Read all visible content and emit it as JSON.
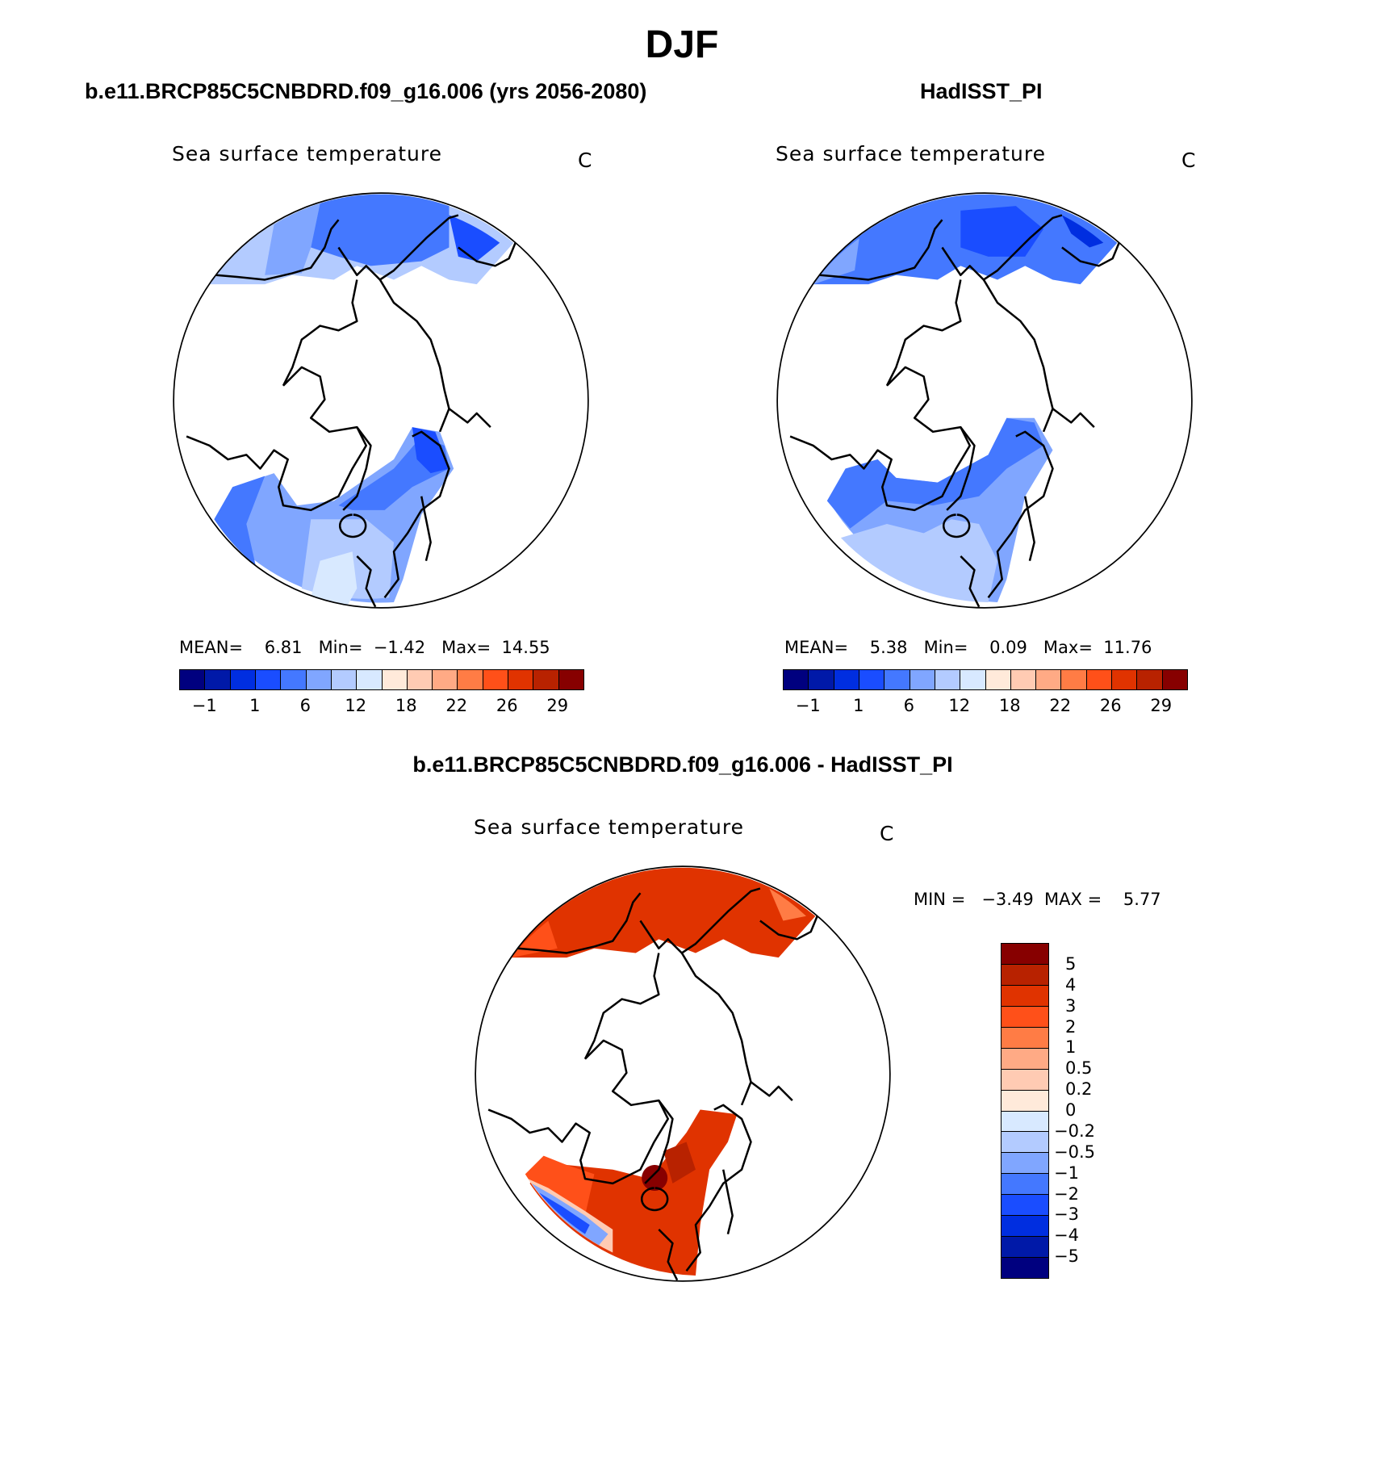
{
  "title": "DJF",
  "colors": {
    "abs_levels": [
      "#00007f",
      "#0019a8",
      "#002ee0",
      "#1a4dff",
      "#4478ff",
      "#80a6ff",
      "#b3cbff",
      "#d8e9ff",
      "#ffeada",
      "#ffcbb3",
      "#ffaa85",
      "#ff7c45",
      "#ff5019",
      "#e03300",
      "#b82200",
      "#870000"
    ],
    "land": "#ffffff",
    "coast": "#000000"
  },
  "chart_data": [
    {
      "type": "heatmap",
      "projection": "north polar stereographic",
      "title": "b.e11.BRCP85C5CNBDRD.f09_g16.006 (yrs 2056-2080)",
      "variable": "Sea surface temperature",
      "units": "C",
      "stats": {
        "mean_label": "MEAN=",
        "mean": "6.81",
        "min_label": "Min=",
        "min": "−1.42",
        "max_label": "Max=",
        "max": "14.55"
      },
      "colorbar_labels": [
        "−1",
        "1",
        "6",
        "12",
        "18",
        "22",
        "26",
        "29"
      ]
    },
    {
      "type": "heatmap",
      "projection": "north polar stereographic",
      "title": "HadISST_PI",
      "variable": "Sea surface temperature",
      "units": "C",
      "stats": {
        "mean_label": "MEAN=",
        "mean": "5.38",
        "min_label": "Min=",
        "min": "0.09",
        "max_label": "Max=",
        "max": "11.76"
      },
      "colorbar_labels": [
        "−1",
        "1",
        "6",
        "12",
        "18",
        "22",
        "26",
        "29"
      ]
    },
    {
      "type": "heatmap",
      "projection": "north polar stereographic",
      "title": "b.e11.BRCP85C5CNBDRD.f09_g16.006 - HadISST_PI",
      "variable": "Sea surface temperature",
      "units": "C",
      "stats": {
        "min_label": "MIN =",
        "min": "−3.49",
        "max_label": "MAX =",
        "max": "5.77"
      },
      "colorbar_labels": [
        "5",
        "4",
        "3",
        "2",
        "1",
        "0.5",
        "0.2",
        "0",
        "−0.2",
        "−0.5",
        "−1",
        "−2",
        "−3",
        "−4",
        "−5"
      ]
    }
  ]
}
